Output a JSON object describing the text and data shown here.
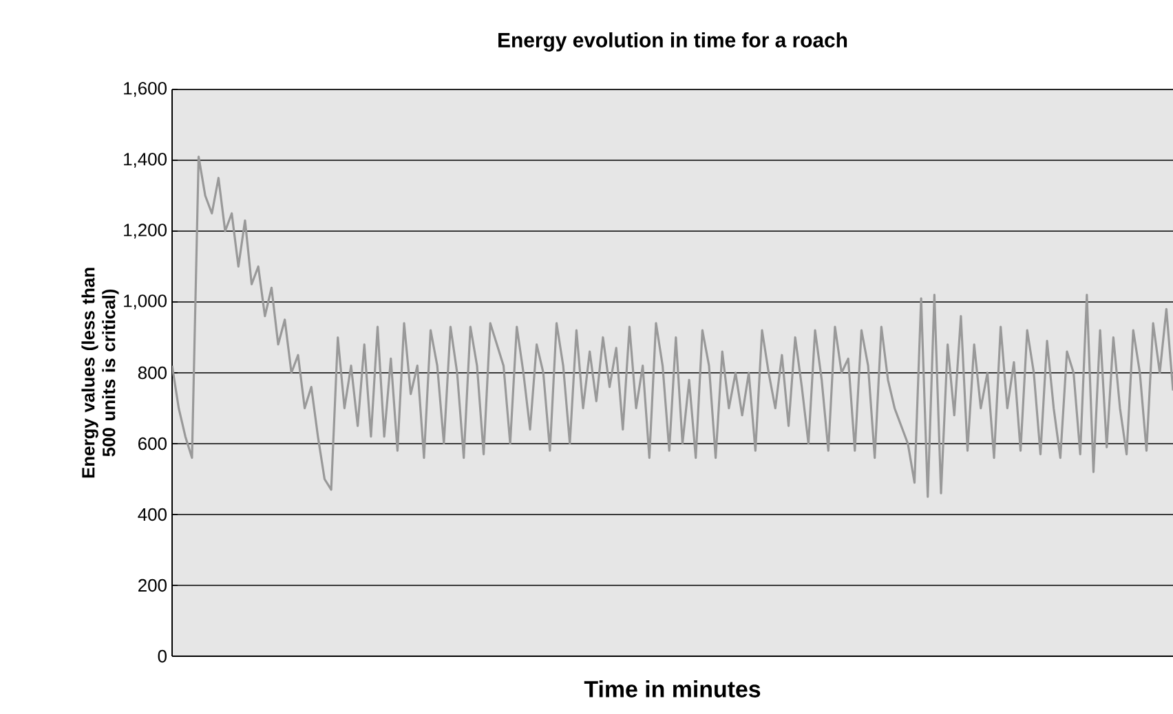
{
  "chart_data": {
    "type": "line",
    "title": "Energy evolution in time for a roach",
    "xlabel": "Time in minutes",
    "ylabel": "Energy values (less than 500 units is critical)",
    "categories": [
      null,
      null,
      null,
      null,
      null,
      null,
      null,
      null,
      null,
      null,
      null,
      null,
      null,
      null,
      null,
      null,
      null,
      null,
      null,
      null,
      null,
      null,
      null,
      null,
      null,
      null,
      null,
      null,
      null,
      null,
      null,
      null,
      null,
      null,
      null,
      null,
      null,
      null,
      null,
      null,
      null,
      null,
      null,
      null,
      null,
      null,
      null,
      null,
      null,
      null,
      null,
      null,
      null,
      null,
      null,
      null,
      null,
      null,
      null,
      null,
      null,
      null,
      null,
      null,
      null,
      null,
      null,
      null,
      null,
      null,
      null,
      null,
      null,
      null,
      null,
      null,
      null,
      null,
      null,
      null,
      null,
      null,
      null,
      null,
      null,
      null,
      null,
      null,
      null,
      null,
      null,
      null,
      null,
      null,
      null,
      null,
      null,
      null,
      null,
      null,
      null,
      null,
      null,
      null,
      null,
      null,
      null,
      null,
      null,
      null,
      null,
      null,
      null,
      null,
      null,
      null,
      null,
      null,
      null,
      null,
      null,
      null,
      null,
      null,
      null,
      null,
      null,
      null,
      null,
      null,
      null,
      null,
      null,
      null,
      null,
      null,
      null,
      null,
      null,
      null,
      null,
      null,
      null,
      null,
      null,
      null,
      null,
      null,
      null,
      null,
      null,
      null
    ],
    "series": [
      {
        "color": "#999999",
        "values": [
          820,
          700,
          620,
          560,
          1410,
          1300,
          1250,
          1350,
          1200,
          1250,
          1100,
          1230,
          1050,
          1100,
          960,
          1040,
          880,
          950,
          800,
          850,
          700,
          760,
          620,
          500,
          470,
          900,
          700,
          820,
          650,
          880,
          620,
          930,
          620,
          840,
          580,
          940,
          740,
          820,
          560,
          920,
          820,
          600,
          930,
          800,
          560,
          930,
          820,
          570,
          940,
          880,
          820,
          600,
          930,
          800,
          640,
          880,
          800,
          580,
          940,
          820,
          600,
          920,
          700,
          860,
          720,
          900,
          760,
          870,
          640,
          930,
          700,
          820,
          560,
          940,
          820,
          580,
          900,
          600,
          780,
          560,
          920,
          820,
          560,
          860,
          700,
          800,
          680,
          800,
          580,
          920,
          800,
          700,
          850,
          650,
          900,
          760,
          600,
          920,
          780,
          580,
          930,
          800,
          840,
          580,
          920,
          820,
          560,
          930,
          780,
          700,
          650,
          600,
          490,
          1010,
          450,
          1020,
          460,
          880,
          680,
          960,
          580,
          880,
          700,
          800,
          560,
          930,
          700,
          830,
          580,
          920,
          800,
          570,
          890,
          700,
          560,
          860,
          800,
          570,
          1020,
          520,
          920,
          590,
          900,
          700,
          570,
          920,
          800,
          580,
          940,
          800,
          980,
          750
        ]
      }
    ],
    "ylim": [
      0,
      1600
    ],
    "yticks": [
      0,
      200,
      400,
      600,
      800,
      {
        "value": 1000,
        "label": "1,000"
      },
      {
        "value": 1200,
        "label": "1,200"
      },
      {
        "value": 1400,
        "label": "1,400"
      },
      {
        "value": 1600,
        "label": "1,600"
      }
    ],
    "grid": "y",
    "marker": "none",
    "line_style": "solid"
  }
}
